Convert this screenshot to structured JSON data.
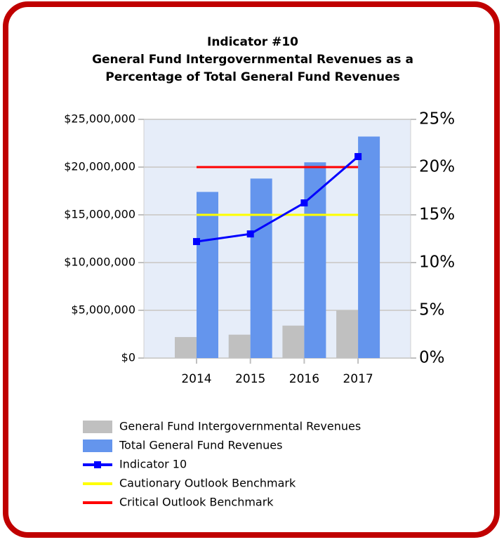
{
  "chart_data": {
    "type": "combo",
    "title": [
      "Indicator #10",
      "General Fund Intergovernmental Revenues as a",
      "Percentage of Total General Fund Revenues"
    ],
    "categories": [
      "2014",
      "2015",
      "2016",
      "2017"
    ],
    "series": [
      {
        "name": "General Fund Intergovernmental Revenues",
        "type": "bar",
        "color": "#c0c0c0",
        "values": [
          2200000,
          2450000,
          3400000,
          5000000
        ]
      },
      {
        "name": "Total General Fund Revenues",
        "type": "bar",
        "color": "#6495ed",
        "values": [
          17400000,
          18800000,
          20500000,
          23200000
        ]
      },
      {
        "name": "Indicator 10",
        "type": "line",
        "axis": "y2",
        "markers": true,
        "color": "#0000ff",
        "values": [
          12.2,
          13.0,
          16.25,
          21.1
        ]
      },
      {
        "name": "Cautionary Outlook Benchmark",
        "type": "line",
        "axis": "y2",
        "color": "#ffff00",
        "values": [
          15,
          15,
          15,
          15
        ]
      },
      {
        "name": "Critical Outlook Benchmark",
        "type": "line",
        "axis": "y2",
        "color": "#ff0000",
        "values": [
          20,
          20,
          20,
          20
        ]
      }
    ],
    "ylim": [
      0,
      25000000
    ],
    "yticks": [
      {
        "value": 0,
        "label": "$0"
      },
      {
        "value": 5000000,
        "label": "$5,000,000"
      },
      {
        "value": 10000000,
        "label": "$10,000,000"
      },
      {
        "value": 15000000,
        "label": "$15,000,000"
      },
      {
        "value": 20000000,
        "label": "$20,000,000"
      },
      {
        "value": 25000000,
        "label": "$25,000,000"
      }
    ],
    "y2lim": [
      0,
      25
    ],
    "y2ticks": [
      {
        "value": 0,
        "label": "0%"
      },
      {
        "value": 5,
        "label": "5%"
      },
      {
        "value": 10,
        "label": "10%"
      },
      {
        "value": 15,
        "label": "15%"
      },
      {
        "value": 20,
        "label": "20%"
      },
      {
        "value": 25,
        "label": "25%"
      }
    ],
    "grid": true,
    "legend": "bottom"
  }
}
